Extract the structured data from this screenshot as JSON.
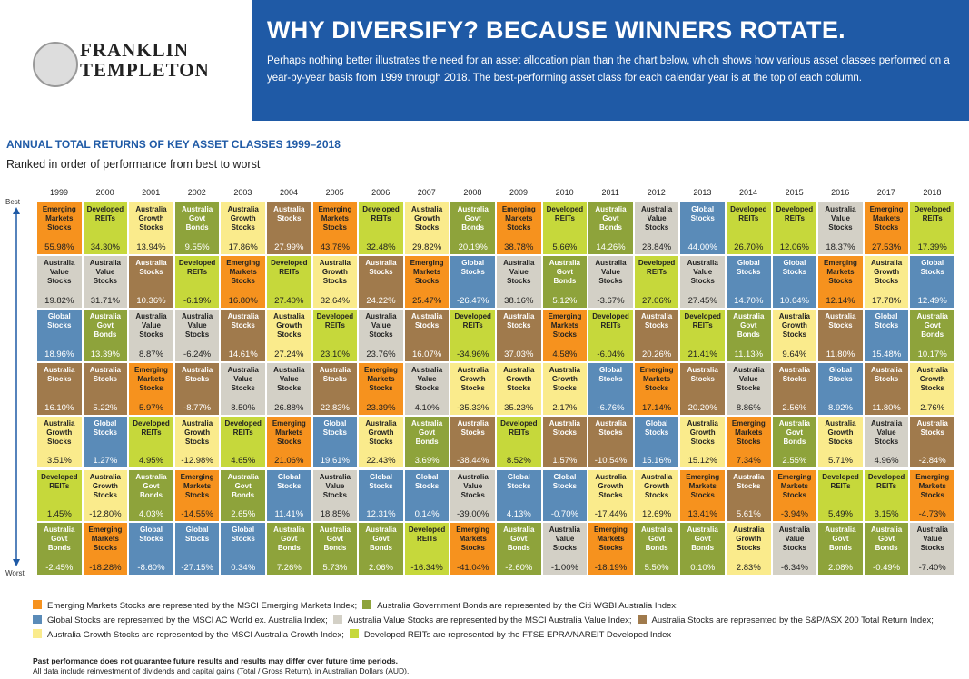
{
  "header": {
    "logo": "FRANKLIN\nTEMPLETON",
    "title": "WHY DIVERSIFY? BECAUSE WINNERS ROTATE.",
    "intro": "Perhaps nothing better illustrates the need for an asset allocation plan than the chart below, which shows how various asset classes performed on a year-by-year basis from 1999 through 2018. The best-performing asset class for each calendar year is at the top of each column."
  },
  "table": {
    "title": "ANNUAL TOTAL RETURNS OF KEY ASSET CLASSES 1999–2018",
    "subtitle": "Ranked in order of performance from best to worst",
    "best": "Best",
    "worst": "Worst",
    "classes": [
      {
        "label": "Emerging Markets Stocks",
        "color": "#f6921e",
        "legend": "Emerging Markets Stocks are represented by the MSCI Emerging Markets Index;"
      },
      {
        "label": "Australia Govt Bonds",
        "color": "#8ea33b",
        "legend": "Australia Government Bonds are represented by the Citi WGBI Australia Index;"
      },
      {
        "label": "Global Stocks",
        "color": "#5a8bb8",
        "legend": "Global Stocks are represented by the MSCI AC World ex. Australia Index;"
      },
      {
        "label": "Australia Value Stocks",
        "color": "#d3d0c6",
        "legend": "Australia Value Stocks are represented by the MSCI Australia Value Index;"
      },
      {
        "label": "Australia Stocks",
        "color": "#a07a4c",
        "legend": "Australia Stocks are represented by the S&P/ASX 200 Total Return Index;"
      },
      {
        "label": "Australia Growth Stocks",
        "color": "#faeb8c",
        "legend": "Australia Growth Stocks are represented by the MSCI Australia Growth Index;"
      },
      {
        "label": "Developed REITs",
        "color": "#c6d83b",
        "legend": "Developed REITs are represented by the FTSE EPRA/NAREIT Developed Index"
      }
    ],
    "columns": [
      {
        "year": "1999",
        "cells": [
          {
            "label": "Emerging Markets Stocks",
            "value": "55.98%"
          },
          {
            "label": "Australia Value Stocks",
            "value": "19.82%"
          },
          {
            "label": "Global Stocks",
            "value": "18.96%"
          },
          {
            "label": "Australia Stocks",
            "value": "16.10%"
          },
          {
            "label": "Australia Growth Stocks",
            "value": "3.51%"
          },
          {
            "label": "Developed REITs",
            "value": "1.45%"
          },
          {
            "label": "Australia Govt Bonds",
            "value": "-2.45%"
          }
        ]
      },
      {
        "year": "2000",
        "cells": [
          {
            "label": "Developed REITs",
            "value": "34.30%"
          },
          {
            "label": "Australia Value Stocks",
            "value": "31.71%"
          },
          {
            "label": "Australia Govt Bonds",
            "value": "13.39%"
          },
          {
            "label": "Australia Stocks",
            "value": "5.22%"
          },
          {
            "label": "Global Stocks",
            "value": "1.27%"
          },
          {
            "label": "Australia Growth Stocks",
            "value": "-12.80%"
          },
          {
            "label": "Emerging Markets Stocks",
            "value": "-18.28%"
          }
        ]
      },
      {
        "year": "2001",
        "cells": [
          {
            "label": "Australia Growth Stocks",
            "value": "13.94%"
          },
          {
            "label": "Australia Stocks",
            "value": "10.36%"
          },
          {
            "label": "Australia Value Stocks",
            "value": "8.87%"
          },
          {
            "label": "Emerging Markets Stocks",
            "value": "5.97%"
          },
          {
            "label": "Developed REITs",
            "value": "4.95%"
          },
          {
            "label": "Australia Govt Bonds",
            "value": "4.03%"
          },
          {
            "label": "Global Stocks",
            "value": "-8.60%"
          }
        ]
      },
      {
        "year": "2002",
        "cells": [
          {
            "label": "Australia Govt Bonds",
            "value": "9.55%"
          },
          {
            "label": "Developed REITs",
            "value": "-6.19%"
          },
          {
            "label": "Australia Value Stocks",
            "value": "-6.24%"
          },
          {
            "label": "Australia Stocks",
            "value": "-8.77%"
          },
          {
            "label": "Australia Growth Stocks",
            "value": "-12.98%"
          },
          {
            "label": "Emerging Markets Stocks",
            "value": "-14.55%"
          },
          {
            "label": "Global Stocks",
            "value": "-27.15%"
          }
        ]
      },
      {
        "year": "2003",
        "cells": [
          {
            "label": "Australia Growth Stocks",
            "value": "17.86%"
          },
          {
            "label": "Emerging Markets Stocks",
            "value": "16.80%"
          },
          {
            "label": "Australia Stocks",
            "value": "14.61%"
          },
          {
            "label": "Australia Value Stocks",
            "value": "8.50%"
          },
          {
            "label": "Developed REITs",
            "value": "4.65%"
          },
          {
            "label": "Australia Govt Bonds",
            "value": "2.65%"
          },
          {
            "label": "Global Stocks",
            "value": "0.34%"
          }
        ]
      },
      {
        "year": "2004",
        "cells": [
          {
            "label": "Australia Stocks",
            "value": "27.99%"
          },
          {
            "label": "Developed REITs",
            "value": "27.40%"
          },
          {
            "label": "Australia Growth Stocks",
            "value": "27.24%"
          },
          {
            "label": "Australia Value Stocks",
            "value": "26.88%"
          },
          {
            "label": "Emerging Markets Stocks",
            "value": "21.06%"
          },
          {
            "label": "Global Stocks",
            "value": "11.41%"
          },
          {
            "label": "Australia Govt Bonds",
            "value": "7.26%"
          }
        ]
      },
      {
        "year": "2005",
        "cells": [
          {
            "label": "Emerging Markets Stocks",
            "value": "43.78%"
          },
          {
            "label": "Australia Growth Stocks",
            "value": "32.64%"
          },
          {
            "label": "Developed REITs",
            "value": "23.10%"
          },
          {
            "label": "Australia Stocks",
            "value": "22.83%"
          },
          {
            "label": "Global Stocks",
            "value": "19.61%"
          },
          {
            "label": "Australia Value Stocks",
            "value": "18.85%"
          },
          {
            "label": "Australia Govt Bonds",
            "value": "5.73%"
          }
        ]
      },
      {
        "year": "2006",
        "cells": [
          {
            "label": "Developed REITs",
            "value": "32.48%"
          },
          {
            "label": "Australia Stocks",
            "value": "24.22%"
          },
          {
            "label": "Australia Value Stocks",
            "value": "23.76%"
          },
          {
            "label": "Emerging Markets Stocks",
            "value": "23.39%"
          },
          {
            "label": "Australia Growth Stocks",
            "value": "22.43%"
          },
          {
            "label": "Global Stocks",
            "value": "12.31%"
          },
          {
            "label": "Australia Govt Bonds",
            "value": "2.06%"
          }
        ]
      },
      {
        "year": "2007",
        "cells": [
          {
            "label": "Australia Growth Stocks",
            "value": "29.82%"
          },
          {
            "label": "Emerging Markets Stocks",
            "value": "25.47%"
          },
          {
            "label": "Australia Stocks",
            "value": "16.07%"
          },
          {
            "label": "Australia Value Stocks",
            "value": "4.10%"
          },
          {
            "label": "Australia Govt Bonds",
            "value": "3.69%"
          },
          {
            "label": "Global Stocks",
            "value": "0.14%"
          },
          {
            "label": "Developed REITs",
            "value": "-16.34%"
          }
        ]
      },
      {
        "year": "2008",
        "cells": [
          {
            "label": "Australia Govt Bonds",
            "value": "20.19%"
          },
          {
            "label": "Global Stocks",
            "value": "-26.47%"
          },
          {
            "label": "Developed REITs",
            "value": "-34.96%"
          },
          {
            "label": "Australia Growth Stocks",
            "value": "-35.33%"
          },
          {
            "label": "Australia Stocks",
            "value": "-38.44%"
          },
          {
            "label": "Australia Value Stocks",
            "value": "-39.00%"
          },
          {
            "label": "Emerging Markets Stocks",
            "value": "-41.04%"
          }
        ]
      },
      {
        "year": "2009",
        "cells": [
          {
            "label": "Emerging Markets Stocks",
            "value": "38.78%"
          },
          {
            "label": "Australia Value Stocks",
            "value": "38.16%"
          },
          {
            "label": "Australia Stocks",
            "value": "37.03%"
          },
          {
            "label": "Australia Growth Stocks",
            "value": "35.23%"
          },
          {
            "label": "Developed REITs",
            "value": "8.52%"
          },
          {
            "label": "Global Stocks",
            "value": "4.13%"
          },
          {
            "label": "Australia Govt Bonds",
            "value": "-2.60%"
          }
        ]
      },
      {
        "year": "2010",
        "cells": [
          {
            "label": "Developed REITs",
            "value": "5.66%"
          },
          {
            "label": "Australia Govt Bonds",
            "value": "5.12%"
          },
          {
            "label": "Emerging Markets Stocks",
            "value": "4.58%"
          },
          {
            "label": "Australia Growth Stocks",
            "value": "2.17%"
          },
          {
            "label": "Australia Stocks",
            "value": "1.57%"
          },
          {
            "label": "Global Stocks",
            "value": "-0.70%"
          },
          {
            "label": "Australia Value Stocks",
            "value": "-1.00%"
          }
        ]
      },
      {
        "year": "2011",
        "cells": [
          {
            "label": "Australia Govt Bonds",
            "value": "14.26%"
          },
          {
            "label": "Australia Value Stocks",
            "value": "-3.67%"
          },
          {
            "label": "Developed REITs",
            "value": "-6.04%"
          },
          {
            "label": "Global Stocks",
            "value": "-6.76%"
          },
          {
            "label": "Australia Stocks",
            "value": "-10.54%"
          },
          {
            "label": "Australia Growth Stocks",
            "value": "-17.44%"
          },
          {
            "label": "Emerging Markets Stocks",
            "value": "-18.19%"
          }
        ]
      },
      {
        "year": "2012",
        "cells": [
          {
            "label": "Australia Value Stocks",
            "value": "28.84%"
          },
          {
            "label": "Developed REITs",
            "value": "27.06%"
          },
          {
            "label": "Australia Stocks",
            "value": "20.26%"
          },
          {
            "label": "Emerging Markets Stocks",
            "value": "17.14%"
          },
          {
            "label": "Global Stocks",
            "value": "15.16%"
          },
          {
            "label": "Australia Growth Stocks",
            "value": "12.69%"
          },
          {
            "label": "Australia Govt Bonds",
            "value": "5.50%"
          }
        ]
      },
      {
        "year": "2013",
        "cells": [
          {
            "label": "Global Stocks",
            "value": "44.00%"
          },
          {
            "label": "Australia Value Stocks",
            "value": "27.45%"
          },
          {
            "label": "Developed REITs",
            "value": "21.41%"
          },
          {
            "label": "Australia Stocks",
            "value": "20.20%"
          },
          {
            "label": "Australia Growth Stocks",
            "value": "15.12%"
          },
          {
            "label": "Emerging Markets Stocks",
            "value": "13.41%"
          },
          {
            "label": "Australia Govt Bonds",
            "value": "0.10%"
          }
        ]
      },
      {
        "year": "2014",
        "cells": [
          {
            "label": "Developed REITs",
            "value": "26.70%"
          },
          {
            "label": "Global Stocks",
            "value": "14.70%"
          },
          {
            "label": "Australia Govt Bonds",
            "value": "11.13%"
          },
          {
            "label": "Australia Value Stocks",
            "value": "8.86%"
          },
          {
            "label": "Emerging Markets Stocks",
            "value": "7.34%"
          },
          {
            "label": "Australia Stocks",
            "value": "5.61%"
          },
          {
            "label": "Australia Growth Stocks",
            "value": "2.83%"
          }
        ]
      },
      {
        "year": "2015",
        "cells": [
          {
            "label": "Developed REITs",
            "value": "12.06%"
          },
          {
            "label": "Global Stocks",
            "value": "10.64%"
          },
          {
            "label": "Australia Growth Stocks",
            "value": "9.64%"
          },
          {
            "label": "Australia Stocks",
            "value": "2.56%"
          },
          {
            "label": "Australia Govt Bonds",
            "value": "2.55%"
          },
          {
            "label": "Emerging Markets Stocks",
            "value": "-3.94%"
          },
          {
            "label": "Australia Value Stocks",
            "value": "-6.34%"
          }
        ]
      },
      {
        "year": "2016",
        "cells": [
          {
            "label": "Australia Value Stocks",
            "value": "18.37%"
          },
          {
            "label": "Emerging Markets Stocks",
            "value": "12.14%"
          },
          {
            "label": "Australia Stocks",
            "value": "11.80%"
          },
          {
            "label": "Global Stocks",
            "value": "8.92%"
          },
          {
            "label": "Australia Growth Stocks",
            "value": "5.71%"
          },
          {
            "label": "Developed REITs",
            "value": "5.49%"
          },
          {
            "label": "Australia Govt Bonds",
            "value": "2.08%"
          }
        ]
      },
      {
        "year": "2017",
        "cells": [
          {
            "label": "Emerging Markets Stocks",
            "value": "27.53%"
          },
          {
            "label": "Australia Growth Stocks",
            "value": "17.78%"
          },
          {
            "label": "Global Stocks",
            "value": "15.48%"
          },
          {
            "label": "Australia Stocks",
            "value": "11.80%"
          },
          {
            "label": "Australia Value Stocks",
            "value": "4.96%"
          },
          {
            "label": "Developed REITs",
            "value": "3.15%"
          },
          {
            "label": "Australia Govt Bonds",
            "value": "-0.49%"
          }
        ]
      },
      {
        "year": "2018",
        "cells": [
          {
            "label": "Developed REITs",
            "value": "17.39%"
          },
          {
            "label": "Global Stocks",
            "value": "12.49%"
          },
          {
            "label": "Australia Govt Bonds",
            "value": "10.17%"
          },
          {
            "label": "Australia Growth Stocks",
            "value": "2.76%"
          },
          {
            "label": "Australia Stocks",
            "value": "-2.84%"
          },
          {
            "label": "Emerging Markets Stocks",
            "value": "-4.73%"
          },
          {
            "label": "Australia Value Stocks",
            "value": "-7.40%"
          }
        ]
      }
    ]
  },
  "footer": {
    "note1": "Past performance does not guarantee future results and results may differ over future time periods.",
    "note2": "All data include reinvestment of dividends and capital gains (Total / Gross Return), in Australian Dollars (AUD)."
  }
}
